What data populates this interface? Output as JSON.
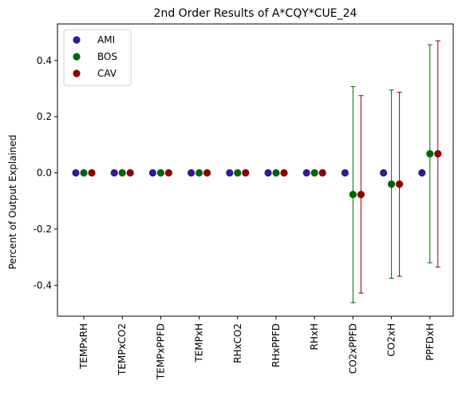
{
  "chart_data": {
    "type": "scatter",
    "title": "2nd Order Results of A*CQY*CUE_24",
    "xlabel": "",
    "ylabel": "Percent of Output Explained",
    "categories": [
      "TEMPxRH",
      "TEMPxCO2",
      "TEMPxPPFD",
      "TEMPxH",
      "RHxCO2",
      "RHxPPFD",
      "RHxH",
      "CO2xPPFD",
      "CO2xH",
      "PPFDxH"
    ],
    "ylim": [
      -0.51,
      0.53
    ],
    "yticks": [
      "0.4",
      "0.2",
      "0.0",
      "-0.2",
      "-0.4"
    ],
    "grid": false,
    "legend_position": "top-left",
    "series": [
      {
        "name": "AMI",
        "color": "#2e1a94",
        "values": [
          0,
          0,
          0,
          0,
          0,
          0,
          0,
          0,
          0,
          0
        ],
        "err_low": [
          0,
          0,
          0,
          0,
          0,
          0,
          0,
          0,
          0,
          0
        ],
        "err_high": [
          0,
          0,
          0,
          0,
          0,
          0,
          0,
          0,
          0,
          0
        ]
      },
      {
        "name": "BOS",
        "color": "#006400",
        "values": [
          0,
          0,
          0,
          0,
          0,
          0,
          0,
          -0.077,
          -0.04,
          0.068
        ],
        "err_low": [
          0,
          0,
          0,
          0,
          0,
          0,
          0,
          -0.462,
          -0.375,
          -0.32
        ],
        "err_high": [
          0,
          0,
          0,
          0,
          0,
          0,
          0,
          0.307,
          0.295,
          0.456
        ]
      },
      {
        "name": "CAV",
        "color": "#8b0000",
        "values": [
          0,
          0,
          0,
          0,
          0,
          0,
          0,
          -0.077,
          -0.04,
          0.068
        ],
        "err_low": [
          0,
          0,
          0,
          0,
          0,
          0,
          0,
          -0.428,
          -0.368,
          -0.335
        ],
        "err_high": [
          0,
          0,
          0,
          0,
          0,
          0,
          0,
          0.275,
          0.287,
          0.47
        ]
      }
    ]
  }
}
